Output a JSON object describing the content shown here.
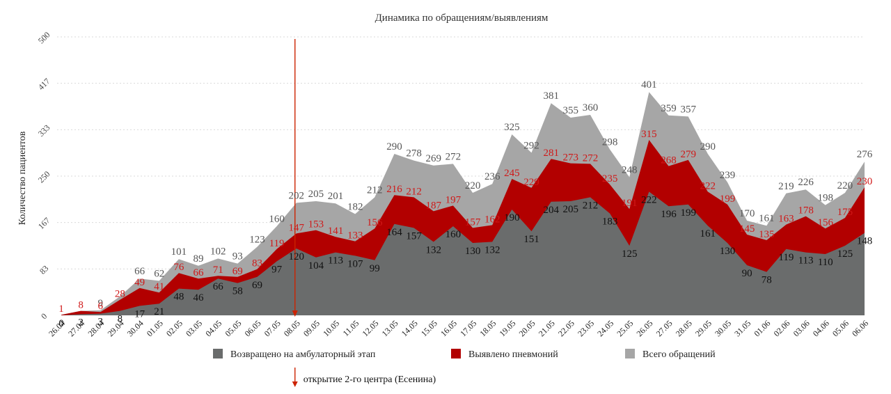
{
  "chart_data": {
    "type": "area",
    "title": "Динамика по обращениям/выявлениям",
    "ylabel": "Количество пациентов",
    "xlabel": "",
    "ylim": [
      0,
      500
    ],
    "yticks": [
      "0",
      "83",
      "167",
      "250",
      "333",
      "417",
      "500"
    ],
    "grid": true,
    "legend_position": "bottom",
    "categories": [
      "26.04",
      "27.04",
      "28.04",
      "29.04",
      "30.04",
      "01.05",
      "02.05",
      "03.05",
      "04.05",
      "05.05",
      "06.05",
      "07.05",
      "08.05",
      "09.05",
      "10.05",
      "11.05",
      "12.05",
      "13.05",
      "14.05",
      "15.05",
      "16.05",
      "17.05",
      "18.05",
      "19.05",
      "20.05",
      "21.05",
      "22.05",
      "23.05",
      "24.05",
      "25.05",
      "26.05",
      "27.05",
      "28.05",
      "29.05",
      "30.05",
      "31.05",
      "01.06",
      "02.06",
      "03.06",
      "04.06",
      "05.06",
      "06.06"
    ],
    "series": [
      {
        "name": "Всего обращений",
        "color": "#a6a6a6",
        "values": [
          1,
          8,
          9,
          34,
          66,
          62,
          101,
          89,
          102,
          93,
          123,
          160,
          202,
          205,
          201,
          182,
          212,
          290,
          278,
          269,
          272,
          220,
          236,
          325,
          292,
          381,
          355,
          360,
          298,
          248,
          401,
          359,
          357,
          290,
          239,
          170,
          161,
          219,
          226,
          198,
          220,
          276
        ],
        "labels": [
          "",
          "",
          "9",
          "",
          "66",
          "62",
          "101",
          "89",
          "102",
          "93",
          "123",
          "160",
          "202",
          "205",
          "201",
          "182",
          "212",
          "290",
          "278",
          "269",
          "272",
          "220",
          "236",
          "325",
          "292",
          "381",
          "355",
          "360",
          "298",
          "248",
          "401",
          "359",
          "357",
          "290",
          "239",
          "170",
          "161",
          "219",
          "226",
          "198",
          "220",
          "276"
        ]
      },
      {
        "name": "Выявлено пневмоний",
        "color": "#b20000",
        "values": [
          1,
          8,
          6,
          28,
          49,
          41,
          76,
          66,
          71,
          69,
          83,
          119,
          147,
          153,
          141,
          133,
          156,
          216,
          212,
          187,
          197,
          157,
          162,
          245,
          229,
          281,
          273,
          272,
          235,
          191,
          315,
          268,
          279,
          222,
          199,
          145,
          135,
          163,
          178,
          156,
          175,
          230
        ],
        "labels": [
          "1",
          "8",
          "6",
          "28",
          "49",
          "41",
          "76",
          "66",
          "71",
          "69",
          "83",
          "119",
          "147",
          "153",
          "141",
          "133",
          "156",
          "216",
          "212",
          "187",
          "197",
          "157",
          "162",
          "245",
          "229",
          "281",
          "273",
          "272",
          "235",
          "191",
          "315",
          "268",
          "279",
          "222",
          "199",
          "145",
          "135",
          "163",
          "178",
          "156",
          "175",
          "230"
        ]
      },
      {
        "name": "Возвращено на амбулаторный этап",
        "color": "#6a6c6c",
        "values": [
          0,
          2,
          3,
          8,
          17,
          21,
          48,
          46,
          66,
          58,
          69,
          97,
          120,
          104,
          113,
          107,
          99,
          164,
          157,
          132,
          160,
          130,
          132,
          190,
          151,
          204,
          205,
          212,
          183,
          125,
          222,
          196,
          199,
          161,
          130,
          90,
          78,
          119,
          113,
          110,
          125,
          148
        ],
        "labels": [
          "0",
          "2",
          "3",
          "8",
          "17",
          "21",
          "48",
          "46",
          "66",
          "58",
          "69",
          "97",
          "120",
          "104",
          "113",
          "107",
          "99",
          "164",
          "157",
          "132",
          "160",
          "130",
          "132",
          "190",
          "151",
          "204",
          "205",
          "212",
          "183",
          "125",
          "222",
          "196",
          "199",
          "161",
          "130",
          "90",
          "78",
          "119",
          "113",
          "110",
          "125",
          "148"
        ]
      }
    ],
    "legend": [
      {
        "name": "Возвращено на амбулаторный этап",
        "color": "#6a6c6c"
      },
      {
        "name": "Выявлено пневмоний",
        "color": "#b20000"
      },
      {
        "name": "Всего обращений",
        "color": "#a6a6a6"
      }
    ],
    "annotation": {
      "text": "открытие 2-го центра (Есенина)",
      "at_category": "08.05",
      "color": "#cc2200"
    }
  }
}
